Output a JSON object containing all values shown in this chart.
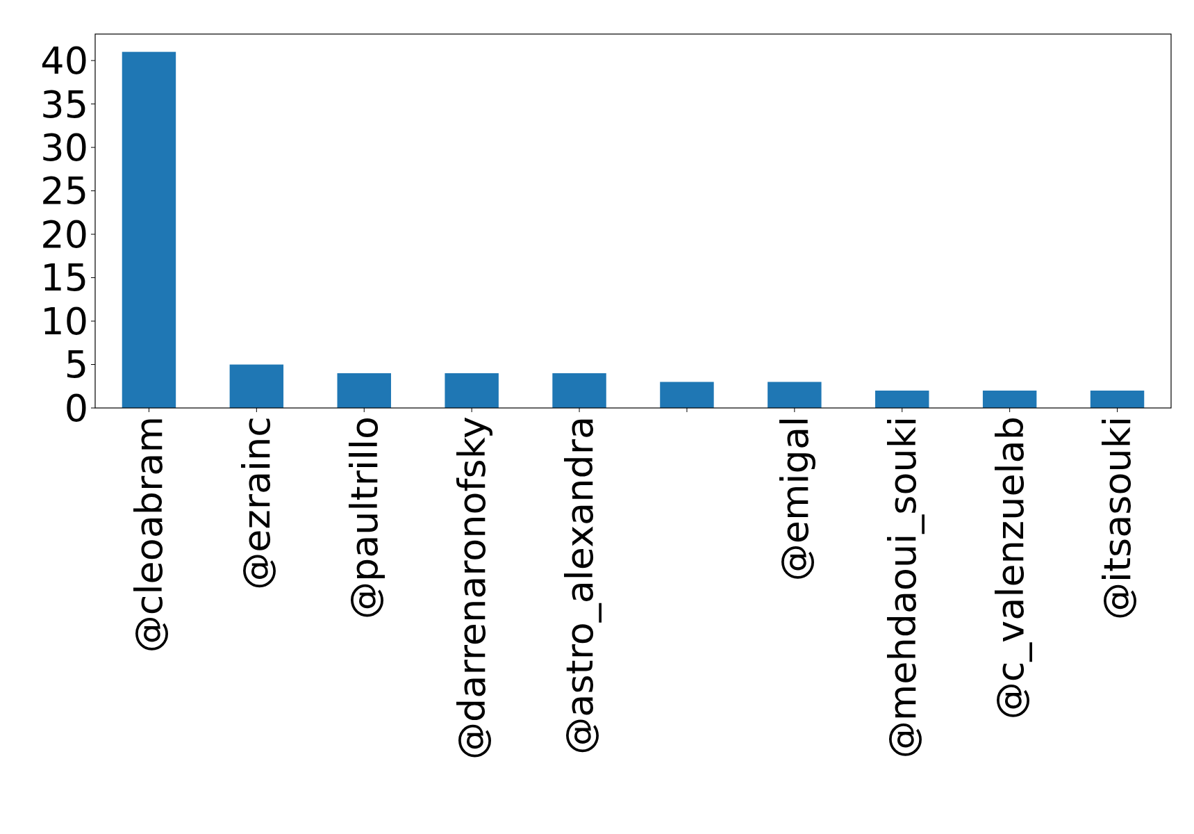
{
  "chart_data": {
    "type": "bar",
    "categories": [
      "@cleoabram",
      "@ezrainc",
      "@paultrillo",
      "@darrenaronofsky",
      "@astro_alexandra",
      null,
      "@emigal",
      "@mehdaoui_souki",
      "@c_valenzuelab",
      "@itsasouki"
    ],
    "values": [
      41,
      5,
      4,
      4,
      4,
      3,
      3,
      2,
      2,
      2
    ],
    "color": "#1f77b4",
    "ylim": [
      0,
      43.05
    ],
    "yticks": [
      0,
      5,
      10,
      15,
      20,
      25,
      30,
      35,
      40
    ],
    "grid": false
  }
}
